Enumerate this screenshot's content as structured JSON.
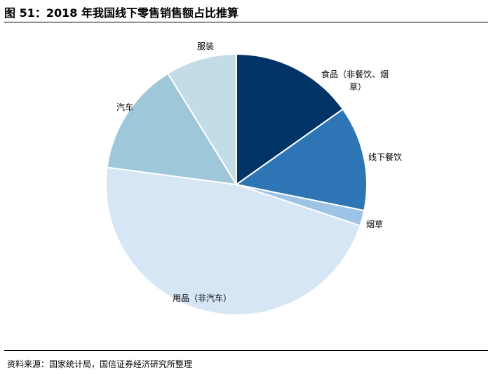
{
  "figure": {
    "title": "图 51：2018 年我国线下零售销售额占比推算",
    "source": "资料来源：国家统计局，国信证券经济研究所整理"
  },
  "chart_data": {
    "type": "pie",
    "title": "图 51：2018 年我国线下零售销售额占比推算",
    "start_angle_deg": 0,
    "direction": "clockwise",
    "legend": "none",
    "slices": [
      {
        "label_lines": [
          "食品（非餐饮、烟",
          "草）"
        ],
        "value": 15.2,
        "color": "#003366"
      },
      {
        "label_lines": [
          "线下餐饮"
        ],
        "value": 13.0,
        "color": "#2e75b6"
      },
      {
        "label_lines": [
          "烟草"
        ],
        "value": 1.9,
        "color": "#9dc3e6"
      },
      {
        "label_lines": [
          "用品（非汽车）"
        ],
        "value": 47.0,
        "color": "#d6e6f5"
      },
      {
        "label_lines": [
          "汽车"
        ],
        "value": 14.1,
        "color": "#9ec8d9"
      },
      {
        "label_lines": [
          "服装"
        ],
        "value": 8.8,
        "color": "#c4dce6"
      }
    ]
  }
}
